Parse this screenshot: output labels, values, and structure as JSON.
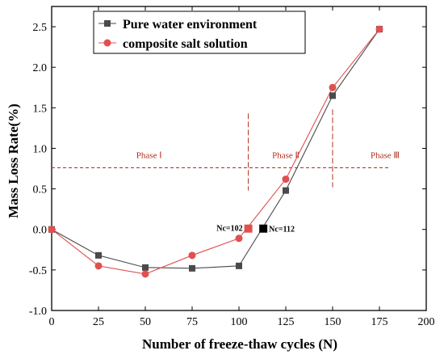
{
  "chart_data": {
    "type": "line",
    "title": "",
    "xlabel": "Number of freeze-thaw cycles (N)",
    "ylabel": "Mass Loss Rate(%)",
    "xlim": [
      0,
      200
    ],
    "ylim": [
      -1.0,
      2.75
    ],
    "xticks": [
      "0",
      "25",
      "50",
      "75",
      "100",
      "125",
      "150",
      "175",
      "200"
    ],
    "yticks": [
      "-1.0",
      "-0.5",
      "0.0",
      "0.5",
      "1.0",
      "1.5",
      "2.0",
      "2.5"
    ],
    "grid": false,
    "legend_position": "top-left",
    "series": [
      {
        "name": "Pure water environment",
        "marker": "square",
        "color": "#4a4a4a",
        "points": [
          {
            "x": 0,
            "y": 0.0
          },
          {
            "x": 25,
            "y": -0.32
          },
          {
            "x": 50,
            "y": -0.47
          },
          {
            "x": 75,
            "y": -0.48
          },
          {
            "x": 100,
            "y": -0.45
          },
          {
            "x": 125,
            "y": 0.48
          },
          {
            "x": 150,
            "y": 1.65
          },
          {
            "x": 175,
            "y": 2.47
          }
        ]
      },
      {
        "name": "composite salt solution",
        "marker": "circle",
        "color": "#e05050",
        "points": [
          {
            "x": 0,
            "y": 0.0
          },
          {
            "x": 25,
            "y": -0.45
          },
          {
            "x": 50,
            "y": -0.55
          },
          {
            "x": 75,
            "y": -0.32
          },
          {
            "x": 100,
            "y": -0.11
          },
          {
            "x": 125,
            "y": 0.62
          },
          {
            "x": 150,
            "y": 1.75
          },
          {
            "x": 175,
            "y": 2.47
          }
        ]
      }
    ],
    "threshold_line": {
      "y": 0.76,
      "x_from": 0,
      "x_to": 180,
      "color": "#b0301e"
    },
    "phase_dividers": [
      {
        "x": 105,
        "y_from": 0.48,
        "y_to": 1.43
      },
      {
        "x": 150,
        "y_from": 0.52,
        "y_to": 1.48
      }
    ],
    "phases": [
      {
        "label": "Phase Ⅰ",
        "x": 52,
        "y": 0.92
      },
      {
        "label": "Phase Ⅱ",
        "x": 125,
        "y": 0.92
      },
      {
        "label": "Phase Ⅲ",
        "x": 178,
        "y": 0.92
      }
    ],
    "critical_points": [
      {
        "label": "Nc=102",
        "x": 105,
        "y": 0.01,
        "color": "#e05050",
        "label_side": "left"
      },
      {
        "label": "Nc=112",
        "x": 113,
        "y": 0.01,
        "color": "#000000",
        "label_side": "right"
      }
    ]
  }
}
